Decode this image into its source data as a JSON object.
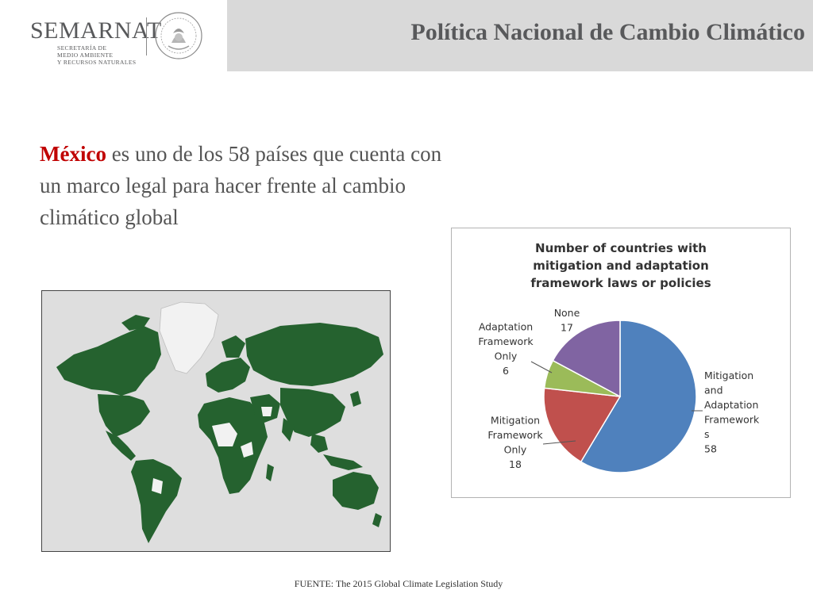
{
  "header": {
    "brand": "SEMARNAT",
    "brand_sub": [
      "SECRETARÍA DE",
      "MEDIO AMBIENTE",
      "Y RECURSOS NATURALES"
    ],
    "title": "Política Nacional de Cambio Climático"
  },
  "intro": {
    "highlight": "México",
    "rest": " es uno de los 58 países que cuenta con un marco legal para hacer frente al cambio climático global"
  },
  "colors": {
    "header_band": "#d9d9d9",
    "highlight": "#c00000",
    "map_land": "#25622f",
    "map_ocean": "#dedede"
  },
  "chart_data": {
    "type": "pie",
    "title": "Number of countries with mitigation and adaptation framework laws or policies",
    "slices": [
      {
        "label": "Mitigation and Adaptation Framework s",
        "label_lines": [
          "Mitigation",
          "and",
          "Adaptation",
          "Framework",
          "s",
          "58"
        ],
        "value": 58,
        "color": "#4f81bd"
      },
      {
        "label": "Mitigation Framework Only",
        "label_lines": [
          "Mitigation",
          "Framework",
          "Only",
          "18"
        ],
        "value": 18,
        "color": "#c0504d"
      },
      {
        "label": "Adaptation Framework Only",
        "label_lines": [
          "Adaptation",
          "Framework",
          "Only",
          "6"
        ],
        "value": 6,
        "color": "#9bbb59"
      },
      {
        "label": "None",
        "label_lines": [
          "None",
          "17"
        ],
        "value": 17,
        "color": "#8064a2"
      }
    ]
  },
  "footer": {
    "source": "FUENTE: The 2015 Global Climate Legislation Study"
  }
}
